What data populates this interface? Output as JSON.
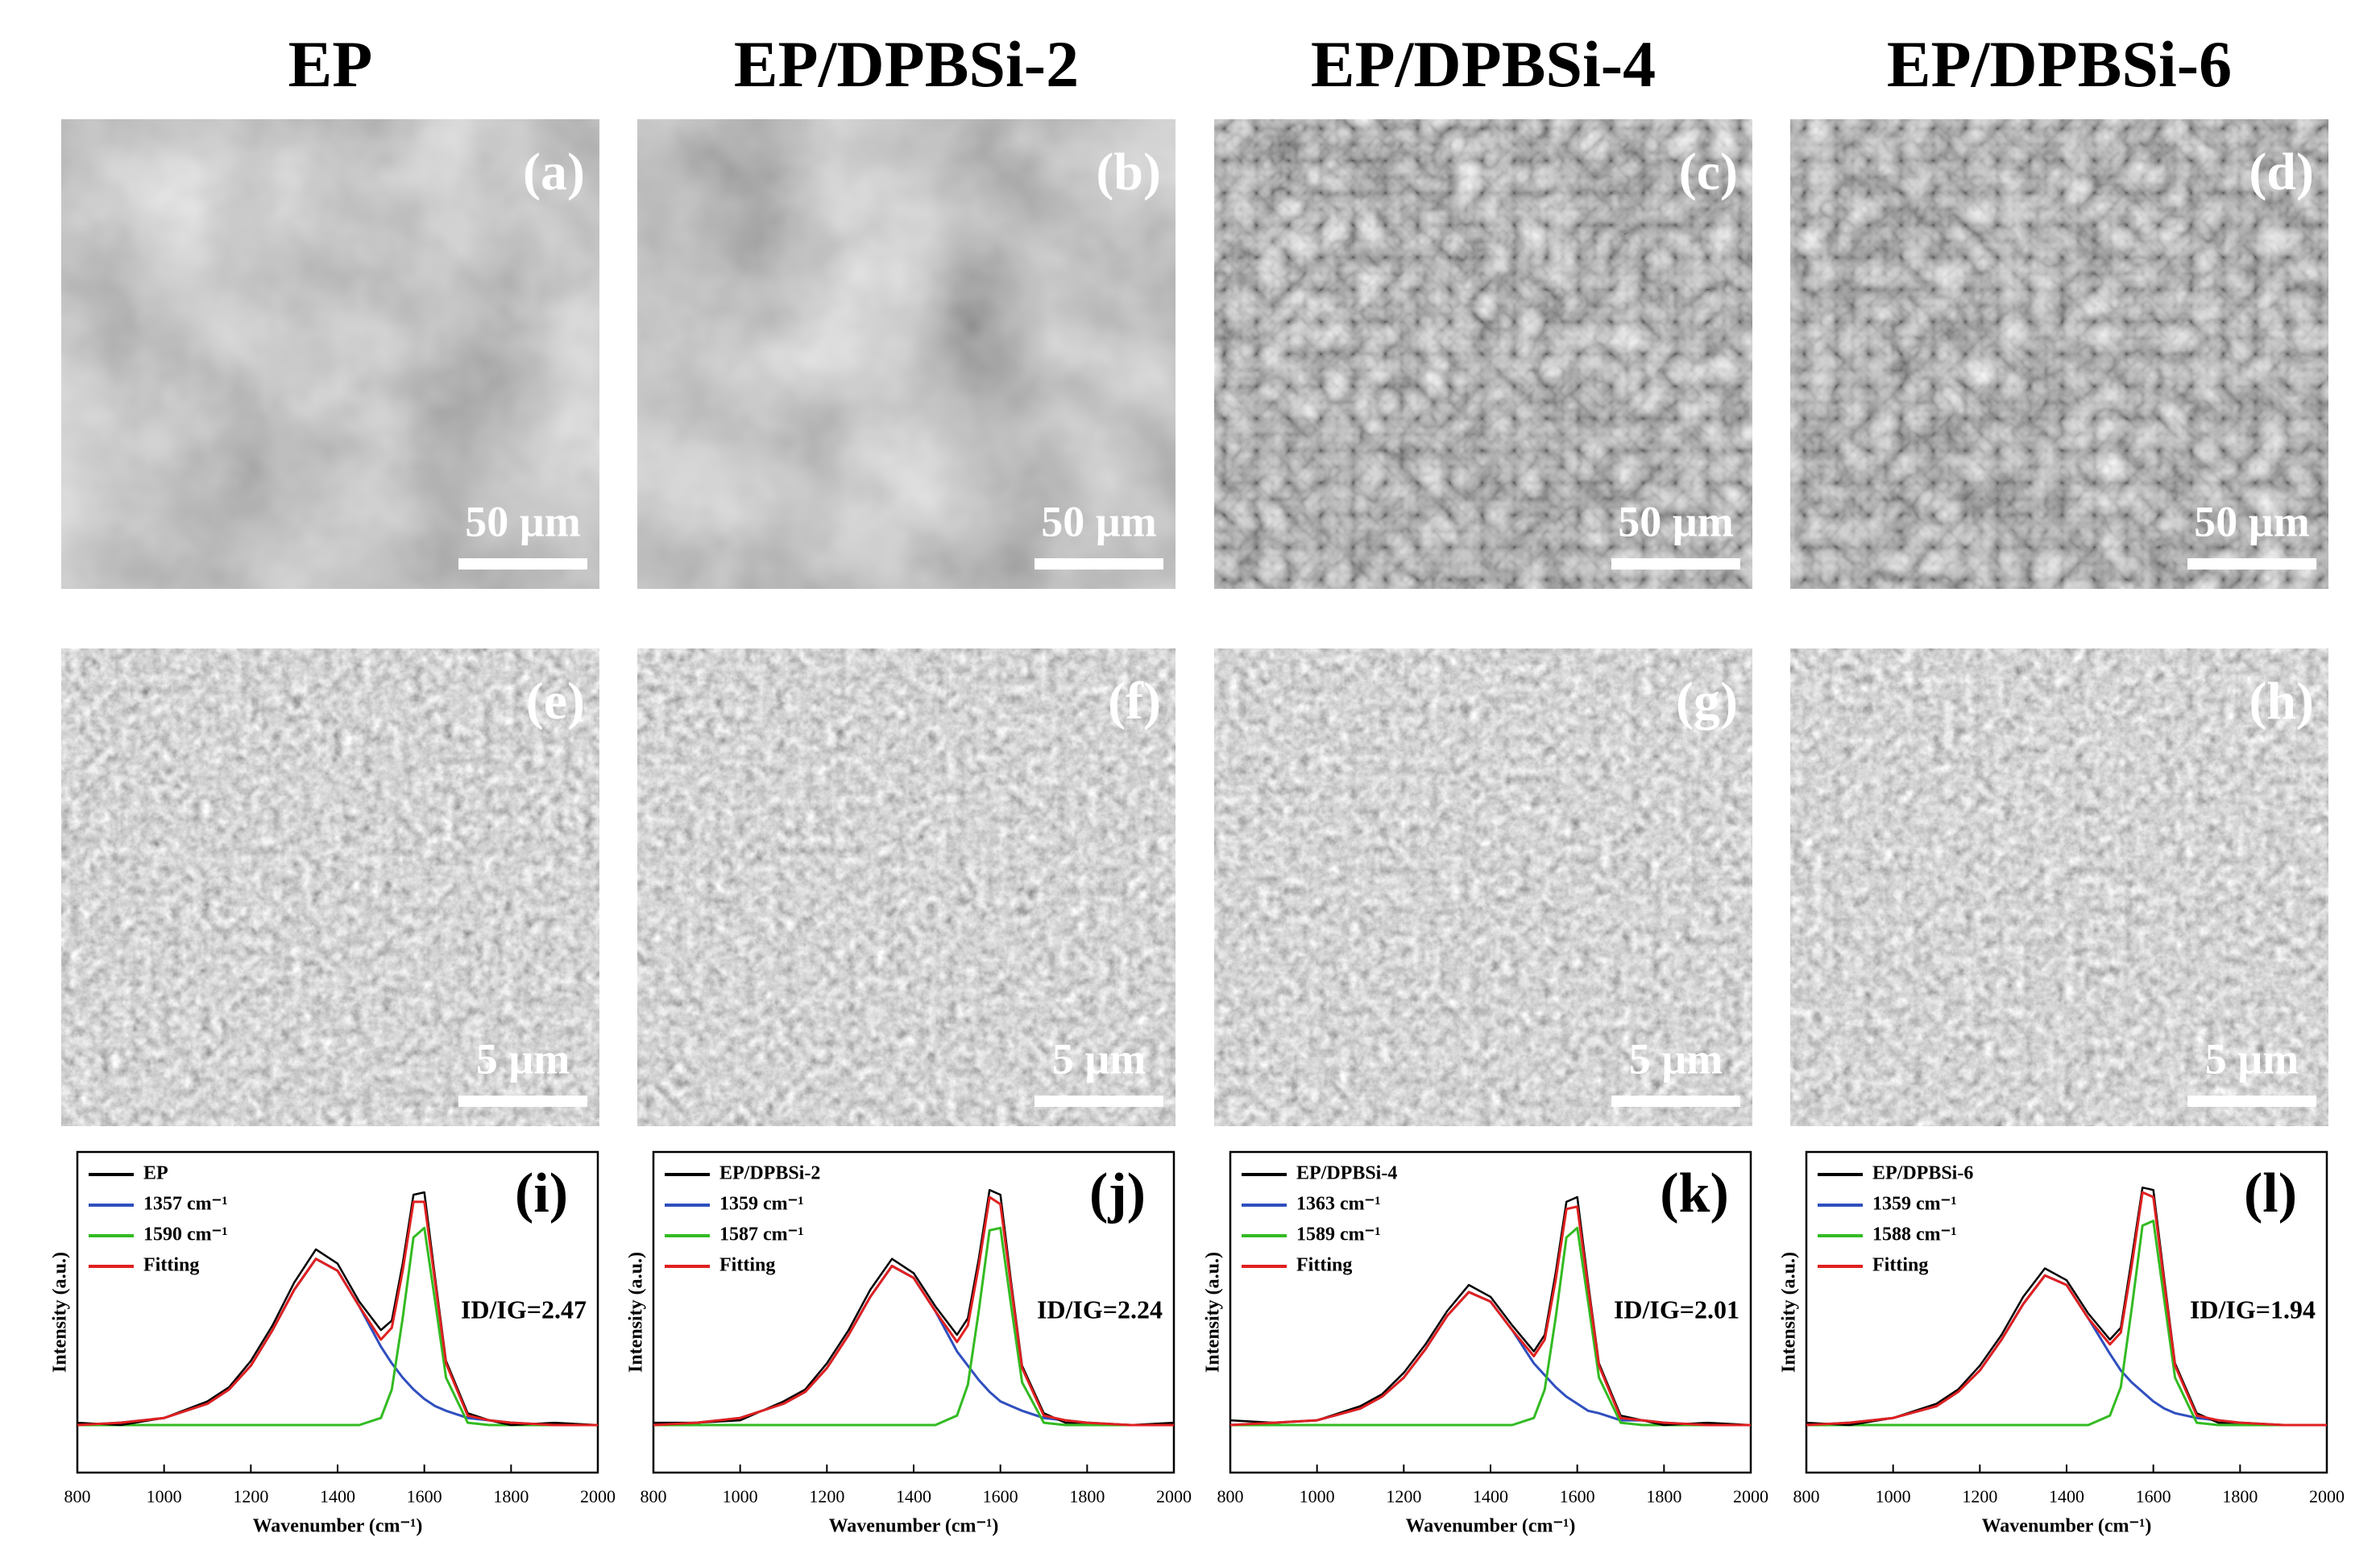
{
  "columns": [
    {
      "title": "EP",
      "sem_low": {
        "label": "(a)",
        "scale": "50 µm"
      },
      "sem_high": {
        "label": "(e)",
        "scale": "5 µm"
      }
    },
    {
      "title": "EP/DPBSi-2",
      "sem_low": {
        "label": "(b)",
        "scale": "50 µm"
      },
      "sem_high": {
        "label": "(f)",
        "scale": "5 µm"
      }
    },
    {
      "title": "EP/DPBSi-4",
      "sem_low": {
        "label": "(c)",
        "scale": "50 µm"
      },
      "sem_high": {
        "label": "(g)",
        "scale": "5 µm"
      }
    },
    {
      "title": "EP/DPBSi-6",
      "sem_low": {
        "label": "(d)",
        "scale": "50 µm"
      },
      "sem_high": {
        "label": "(h)",
        "scale": "5 µm"
      }
    }
  ],
  "chart_data": [
    {
      "type": "line",
      "label": "(i)",
      "annotation": "ID/IG=2.47",
      "x_label": "Wavenumber (cm⁻¹)",
      "y_label": "Intensity (a.u.)",
      "legend": "upper left",
      "x": [
        800,
        900,
        1000,
        1100,
        1150,
        1200,
        1250,
        1300,
        1350,
        1400,
        1450,
        1500,
        1525,
        1550,
        1575,
        1600,
        1625,
        1650,
        1700,
        1750,
        1800,
        1900,
        2000
      ],
      "xlim": [
        800,
        2000
      ],
      "xticks": [
        800,
        1000,
        1200,
        1400,
        1600,
        1800,
        2000
      ],
      "ylim": [
        -0.2,
        1.15
      ],
      "series": [
        {
          "name": "EP",
          "color": "#000000",
          "values": [
            0.01,
            0.0,
            0.03,
            0.1,
            0.16,
            0.27,
            0.42,
            0.6,
            0.74,
            0.68,
            0.52,
            0.4,
            0.44,
            0.68,
            0.97,
            0.98,
            0.62,
            0.27,
            0.05,
            0.02,
            0.0,
            0.01,
            0.0
          ]
        },
        {
          "name": "1357 cm⁻¹",
          "color": "#2f4fbf",
          "values": [
            0.0,
            0.01,
            0.03,
            0.09,
            0.15,
            0.25,
            0.4,
            0.57,
            0.7,
            0.65,
            0.5,
            0.33,
            0.26,
            0.2,
            0.15,
            0.11,
            0.08,
            0.06,
            0.03,
            0.02,
            0.01,
            0.0,
            0.0
          ]
        },
        {
          "name": "1590 cm⁻¹",
          "color": "#33bb22",
          "values": [
            0,
            0,
            0,
            0,
            0,
            0,
            0,
            0,
            0,
            0,
            0,
            0.03,
            0.15,
            0.45,
            0.79,
            0.83,
            0.52,
            0.2,
            0.01,
            0,
            0,
            0,
            0
          ]
        },
        {
          "name": "Fitting",
          "color": "#e02020",
          "values": [
            0.0,
            0.01,
            0.03,
            0.09,
            0.15,
            0.25,
            0.4,
            0.57,
            0.7,
            0.65,
            0.5,
            0.36,
            0.41,
            0.65,
            0.94,
            0.94,
            0.6,
            0.26,
            0.04,
            0.02,
            0.01,
            0.0,
            0.0
          ]
        }
      ]
    },
    {
      "type": "line",
      "label": "(j)",
      "annotation": "ID/IG=2.24",
      "x_label": "Wavenumber (cm⁻¹)",
      "y_label": "Intensity (a.u.)",
      "legend": "upper left",
      "x": [
        800,
        900,
        1000,
        1100,
        1150,
        1200,
        1250,
        1300,
        1350,
        1400,
        1450,
        1500,
        1525,
        1550,
        1575,
        1600,
        1625,
        1650,
        1700,
        1750,
        1800,
        1900,
        2000
      ],
      "xlim": [
        800,
        2000
      ],
      "xticks": [
        800,
        1000,
        1200,
        1400,
        1600,
        1800,
        2000
      ],
      "ylim": [
        -0.2,
        1.15
      ],
      "series": [
        {
          "name": "EP/DPBSi-2",
          "color": "#000000",
          "values": [
            0.01,
            0.01,
            0.02,
            0.1,
            0.15,
            0.26,
            0.4,
            0.57,
            0.7,
            0.64,
            0.5,
            0.38,
            0.45,
            0.7,
            0.99,
            0.97,
            0.6,
            0.25,
            0.05,
            0.01,
            0.01,
            0.0,
            0.01
          ]
        },
        {
          "name": "1359 cm⁻¹",
          "color": "#2f4fbf",
          "values": [
            0.0,
            0.01,
            0.03,
            0.09,
            0.14,
            0.24,
            0.38,
            0.54,
            0.67,
            0.62,
            0.48,
            0.31,
            0.25,
            0.19,
            0.14,
            0.1,
            0.08,
            0.06,
            0.03,
            0.02,
            0.01,
            0.0,
            0.0
          ]
        },
        {
          "name": "1587 cm⁻¹",
          "color": "#33bb22",
          "values": [
            0,
            0,
            0,
            0,
            0,
            0,
            0,
            0,
            0,
            0,
            0,
            0.04,
            0.17,
            0.48,
            0.82,
            0.83,
            0.5,
            0.18,
            0.01,
            0,
            0,
            0,
            0
          ]
        },
        {
          "name": "Fitting",
          "color": "#e02020",
          "values": [
            0.0,
            0.01,
            0.03,
            0.09,
            0.14,
            0.24,
            0.38,
            0.54,
            0.67,
            0.62,
            0.48,
            0.35,
            0.42,
            0.67,
            0.96,
            0.93,
            0.58,
            0.24,
            0.04,
            0.02,
            0.01,
            0.0,
            0.0
          ]
        }
      ]
    },
    {
      "type": "line",
      "label": "(k)",
      "annotation": "ID/IG=2.01",
      "x_label": "Wavenumber (cm⁻¹)",
      "y_label": "Intensity (a.u.)",
      "legend": "upper left",
      "x": [
        800,
        900,
        1000,
        1100,
        1150,
        1200,
        1250,
        1300,
        1350,
        1400,
        1450,
        1500,
        1525,
        1550,
        1575,
        1600,
        1625,
        1650,
        1700,
        1750,
        1800,
        1900,
        2000
      ],
      "xlim": [
        800,
        2000
      ],
      "xticks": [
        800,
        1000,
        1200,
        1400,
        1600,
        1800,
        2000
      ],
      "ylim": [
        -0.2,
        1.15
      ],
      "series": [
        {
          "name": "EP/DPBSi-4",
          "color": "#000000",
          "values": [
            0.02,
            0.01,
            0.02,
            0.08,
            0.13,
            0.22,
            0.34,
            0.48,
            0.59,
            0.54,
            0.42,
            0.31,
            0.38,
            0.64,
            0.94,
            0.96,
            0.6,
            0.26,
            0.04,
            0.02,
            0.0,
            0.01,
            0.0
          ]
        },
        {
          "name": "1363 cm⁻¹",
          "color": "#2f4fbf",
          "values": [
            0.0,
            0.01,
            0.02,
            0.07,
            0.12,
            0.2,
            0.32,
            0.46,
            0.56,
            0.52,
            0.4,
            0.26,
            0.21,
            0.16,
            0.12,
            0.09,
            0.06,
            0.05,
            0.02,
            0.02,
            0.01,
            0.0,
            0.0
          ]
        },
        {
          "name": "1589 cm⁻¹",
          "color": "#33bb22",
          "values": [
            0,
            0,
            0,
            0,
            0,
            0,
            0,
            0,
            0,
            0,
            0,
            0.03,
            0.15,
            0.45,
            0.79,
            0.83,
            0.52,
            0.2,
            0.01,
            0,
            0,
            0,
            0
          ]
        },
        {
          "name": "Fitting",
          "color": "#e02020",
          "values": [
            0.0,
            0.01,
            0.02,
            0.07,
            0.12,
            0.2,
            0.32,
            0.46,
            0.56,
            0.52,
            0.4,
            0.29,
            0.36,
            0.61,
            0.91,
            0.92,
            0.58,
            0.25,
            0.03,
            0.02,
            0.01,
            0.0,
            0.0
          ]
        }
      ]
    },
    {
      "type": "line",
      "label": "(l)",
      "annotation": "ID/IG=1.94",
      "x_label": "Wavenumber (cm⁻¹)",
      "y_label": "Intensity (a.u.)",
      "legend": "upper left",
      "x": [
        800,
        900,
        1000,
        1100,
        1150,
        1200,
        1250,
        1300,
        1350,
        1400,
        1450,
        1500,
        1525,
        1550,
        1575,
        1600,
        1625,
        1650,
        1700,
        1750,
        1800,
        1900,
        2000
      ],
      "xlim": [
        800,
        2000
      ],
      "xticks": [
        800,
        1000,
        1200,
        1400,
        1600,
        1800,
        2000
      ],
      "ylim": [
        -0.2,
        1.15
      ],
      "series": [
        {
          "name": "EP/DPBSi-6",
          "color": "#000000",
          "values": [
            0.01,
            0.0,
            0.03,
            0.09,
            0.15,
            0.25,
            0.38,
            0.54,
            0.66,
            0.61,
            0.47,
            0.36,
            0.41,
            0.7,
            1.0,
            0.99,
            0.62,
            0.26,
            0.05,
            0.01,
            0.01,
            0.0,
            0.0
          ]
        },
        {
          "name": "1359 cm⁻¹",
          "color": "#2f4fbf",
          "values": [
            0.0,
            0.01,
            0.03,
            0.08,
            0.14,
            0.23,
            0.36,
            0.51,
            0.63,
            0.59,
            0.45,
            0.3,
            0.23,
            0.18,
            0.14,
            0.1,
            0.07,
            0.05,
            0.03,
            0.02,
            0.01,
            0.0,
            0.0
          ]
        },
        {
          "name": "1588 cm⁻¹",
          "color": "#33bb22",
          "values": [
            0,
            0,
            0,
            0,
            0,
            0,
            0,
            0,
            0,
            0,
            0,
            0.04,
            0.16,
            0.49,
            0.84,
            0.86,
            0.53,
            0.2,
            0.01,
            0,
            0,
            0,
            0
          ]
        },
        {
          "name": "Fitting",
          "color": "#e02020",
          "values": [
            0.0,
            0.01,
            0.03,
            0.08,
            0.14,
            0.23,
            0.36,
            0.51,
            0.63,
            0.59,
            0.45,
            0.34,
            0.39,
            0.67,
            0.98,
            0.96,
            0.6,
            0.25,
            0.04,
            0.02,
            0.01,
            0.0,
            0.0
          ]
        }
      ]
    }
  ]
}
